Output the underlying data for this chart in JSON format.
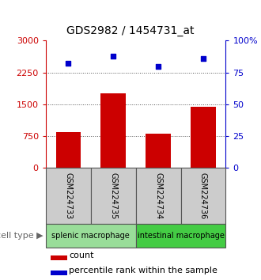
{
  "title": "GDS2982 / 1454731_at",
  "samples": [
    "GSM224733",
    "GSM224735",
    "GSM224734",
    "GSM224736"
  ],
  "counts": [
    850,
    1750,
    800,
    1450
  ],
  "percentile_ranks": [
    82,
    88,
    80,
    86
  ],
  "left_ylim": [
    0,
    3000
  ],
  "left_yticks": [
    0,
    750,
    1500,
    2250,
    3000
  ],
  "right_ylim": [
    0,
    100
  ],
  "right_yticks": [
    0,
    25,
    50,
    75,
    100
  ],
  "bar_color": "#cc0000",
  "scatter_color": "#0000cc",
  "groups": [
    {
      "label": "splenic macrophage",
      "indices": [
        0,
        1
      ],
      "color": "#99dd99"
    },
    {
      "label": "intestinal macrophage",
      "indices": [
        2,
        3
      ],
      "color": "#44cc44"
    }
  ],
  "sample_box_color": "#cccccc",
  "sample_box_edge": "#555555",
  "left_axis_color": "#cc0000",
  "right_axis_color": "#0000cc",
  "cell_type_label": "cell type",
  "legend_count_label": "count",
  "legend_percentile_label": "percentile rank within the sample",
  "dotted_line_color": "#555555",
  "title_fontsize": 10,
  "axis_fontsize": 8,
  "label_fontsize": 7,
  "legend_fontsize": 8
}
